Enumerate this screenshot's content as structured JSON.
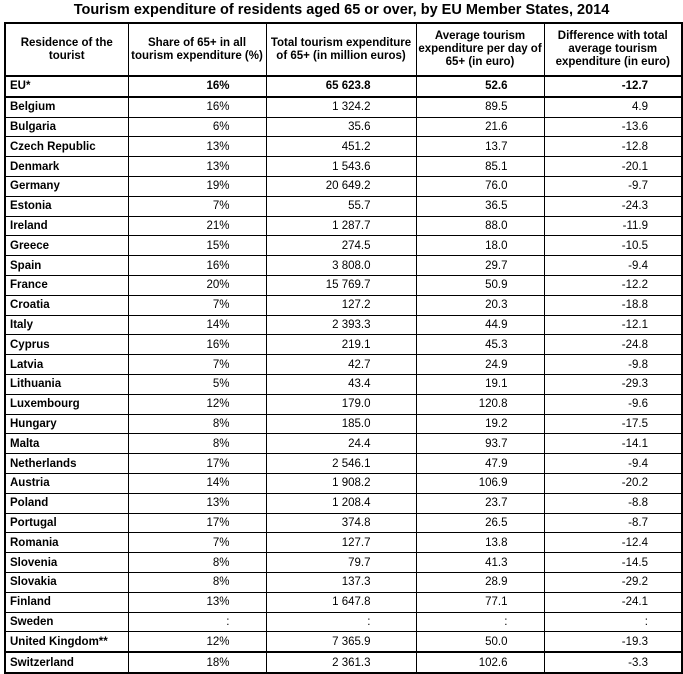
{
  "title": "Tourism expenditure of residents aged 65 or over, by EU Member States, 2014",
  "table": {
    "headers": [
      "Residence of the tourist",
      "Share of 65+ in all tourism expenditure (%)",
      "Total tourism expenditure of 65+ (in million euros)",
      "Average tourism expenditure per day of 65+ (in euro)",
      "Difference with total average tourism expenditure (in euro)"
    ],
    "rows": [
      [
        "EU*",
        "16%",
        "65 623.8",
        "52.6",
        "-12.7"
      ],
      [
        "Belgium",
        "16%",
        "1 324.2",
        "89.5",
        "4.9"
      ],
      [
        "Bulgaria",
        "6%",
        "35.6",
        "21.6",
        "-13.6"
      ],
      [
        "Czech Republic",
        "13%",
        "451.2",
        "13.7",
        "-12.8"
      ],
      [
        "Denmark",
        "13%",
        "1 543.6",
        "85.1",
        "-20.1"
      ],
      [
        "Germany",
        "19%",
        "20 649.2",
        "76.0",
        "-9.7"
      ],
      [
        "Estonia",
        "7%",
        "55.7",
        "36.5",
        "-24.3"
      ],
      [
        "Ireland",
        "21%",
        "1 287.7",
        "88.0",
        "-11.9"
      ],
      [
        "Greece",
        "15%",
        "274.5",
        "18.0",
        "-10.5"
      ],
      [
        "Spain",
        "16%",
        "3 808.0",
        "29.7",
        "-9.4"
      ],
      [
        "France",
        "20%",
        "15 769.7",
        "50.9",
        "-12.2"
      ],
      [
        "Croatia",
        "7%",
        "127.2",
        "20.3",
        "-18.8"
      ],
      [
        "Italy",
        "14%",
        "2 393.3",
        "44.9",
        "-12.1"
      ],
      [
        "Cyprus",
        "16%",
        "219.1",
        "45.3",
        "-24.8"
      ],
      [
        "Latvia",
        "7%",
        "42.7",
        "24.9",
        "-9.8"
      ],
      [
        "Lithuania",
        "5%",
        "43.4",
        "19.1",
        "-29.3"
      ],
      [
        "Luxembourg",
        "12%",
        "179.0",
        "120.8",
        "-9.6"
      ],
      [
        "Hungary",
        "8%",
        "185.0",
        "19.2",
        "-17.5"
      ],
      [
        "Malta",
        "8%",
        "24.4",
        "93.7",
        "-14.1"
      ],
      [
        "Netherlands",
        "17%",
        "2 546.1",
        "47.9",
        "-9.4"
      ],
      [
        "Austria",
        "14%",
        "1 908.2",
        "106.9",
        "-20.2"
      ],
      [
        "Poland",
        "13%",
        "1 208.4",
        "23.7",
        "-8.8"
      ],
      [
        "Portugal",
        "17%",
        "374.8",
        "26.5",
        "-8.7"
      ],
      [
        "Romania",
        "7%",
        "127.7",
        "13.8",
        "-12.4"
      ],
      [
        "Slovenia",
        "8%",
        "79.7",
        "41.3",
        "-14.5"
      ],
      [
        "Slovakia",
        "8%",
        "137.3",
        "28.9",
        "-29.2"
      ],
      [
        "Finland",
        "13%",
        "1 647.8",
        "77.1",
        "-24.1"
      ],
      [
        "Sweden",
        ":",
        ":",
        ":",
        ":"
      ],
      [
        "United Kingdom**",
        "12%",
        "7 365.9",
        "50.0",
        "-19.3"
      ],
      [
        "Switzerland",
        "18%",
        "2 361.3",
        "102.6",
        "-3.3"
      ]
    ]
  }
}
